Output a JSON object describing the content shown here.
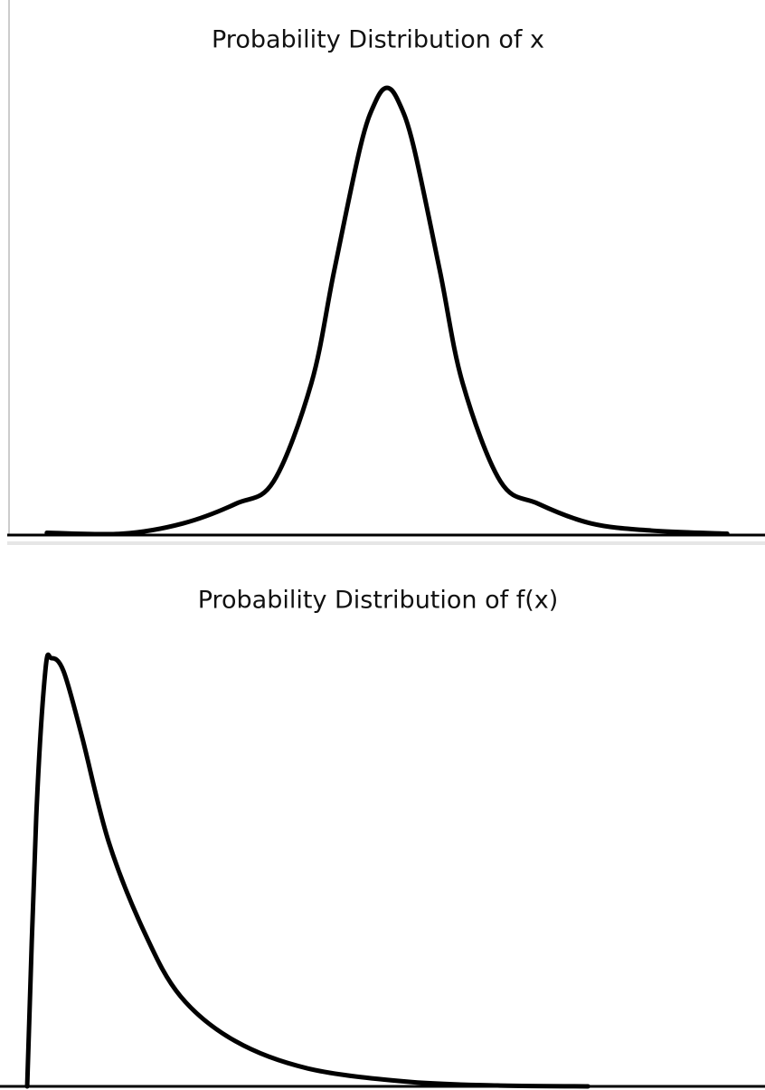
{
  "chart_data": [
    {
      "type": "line",
      "title": "Probability Distribution of x",
      "x": [
        -4.5,
        -3.5,
        -2.7,
        -2,
        -1.5,
        -1,
        -0.7,
        -0.35,
        -0.15,
        0,
        0.15,
        0.35,
        0.7,
        1,
        1.5,
        2,
        2.7,
        3.5,
        4.5
      ],
      "series": [
        {
          "color": "#000000",
          "values": [
            0.005,
            0.003,
            0.026,
            0.07,
            0.12,
            0.34,
            0.59,
            0.87,
            0.97,
            1,
            0.97,
            0.87,
            0.59,
            0.34,
            0.12,
            0.07,
            0.026,
            0.01,
            0.003
          ]
        }
      ],
      "xlim": [
        -5,
        5
      ],
      "ylim": [
        0,
        1
      ]
    },
    {
      "type": "line",
      "title": "Probability Distribution of f(x)",
      "x": [
        0.24,
        0.36,
        0.48,
        0.56,
        0.72,
        0.96,
        1.32,
        1.79,
        2.27,
        2.99,
        3.95,
        5.26,
        6.46,
        7.66
      ],
      "series": [
        {
          "color": "#000000",
          "values": [
            0,
            0.63,
            0.97,
            1,
            0.97,
            0.82,
            0.57,
            0.36,
            0.21,
            0.106,
            0.042,
            0.011,
            0.002,
            0
          ]
        }
      ],
      "xlim": [
        0,
        10
      ],
      "ylim": [
        0,
        1
      ]
    }
  ]
}
